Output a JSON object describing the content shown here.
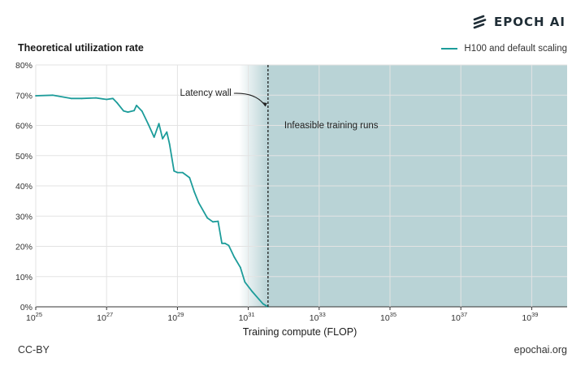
{
  "brand": {
    "name": "EPOCH AI",
    "icon": "epoch-logo-icon"
  },
  "footer": {
    "license": "CC-BY",
    "site": "epochai.org"
  },
  "chart_data": {
    "type": "line",
    "title": "Theoretical utilization rate",
    "xlabel": "Training compute (FLOP)",
    "ylabel": "",
    "xscale": "log",
    "xlim": [
      1e+25,
      1e+40
    ],
    "ylim": [
      0,
      80
    ],
    "xticks": [
      {
        "base": "10",
        "exp": "25"
      },
      {
        "base": "10",
        "exp": "27"
      },
      {
        "base": "10",
        "exp": "29"
      },
      {
        "base": "10",
        "exp": "31"
      },
      {
        "base": "10",
        "exp": "33"
      },
      {
        "base": "10",
        "exp": "35"
      },
      {
        "base": "10",
        "exp": "37"
      },
      {
        "base": "10",
        "exp": "39"
      }
    ],
    "yticks": [
      "0%",
      "10%",
      "20%",
      "30%",
      "40%",
      "50%",
      "60%",
      "70%",
      "80%"
    ],
    "grid": true,
    "legend_position": "top-right",
    "series": [
      {
        "name": "H100 and default scaling",
        "color": "#1c9c9a",
        "x": [
          1e+25,
          3e+25,
          1e+26,
          2e+26,
          5e+26,
          1e+27,
          1.5e+27,
          2e+27,
          3e+27,
          4e+27,
          6e+27,
          7e+27,
          1e+28,
          1.5e+28,
          2.2e+28,
          3e+28,
          3.8e+28,
          5e+28,
          6e+28,
          8e+28,
          1e+29,
          1.4e+29,
          2.2e+29,
          3e+29,
          4e+29,
          7e+29,
          1e+30,
          1.4e+30,
          1.8e+30,
          2.2e+30,
          2.8e+30,
          4e+30,
          6e+30,
          8e+30,
          1.3e+31,
          2e+31,
          2.6e+31,
          3.6e+31
        ],
        "y": [
          69.8,
          70.0,
          68.9,
          68.9,
          69.1,
          68.6,
          68.9,
          67.4,
          64.8,
          64.4,
          64.9,
          66.6,
          64.7,
          60.4,
          56.1,
          60.6,
          55.6,
          57.8,
          53.8,
          44.9,
          44.4,
          44.4,
          42.7,
          38.0,
          34.4,
          29.4,
          28.1,
          28.3,
          21.0,
          21.0,
          20.3,
          16.5,
          13.0,
          8.2,
          5.0,
          2.5,
          1.0,
          0.0
        ]
      }
    ],
    "annotations": [
      {
        "text": "Latency wall",
        "x": 3.6e+31
      },
      {
        "text": "Infeasible training runs"
      }
    ],
    "shaded_region": {
      "x_start": 3.6e+31,
      "x_end": 1e+40,
      "color": "#b9d3d6",
      "label": "Infeasible training runs"
    }
  }
}
